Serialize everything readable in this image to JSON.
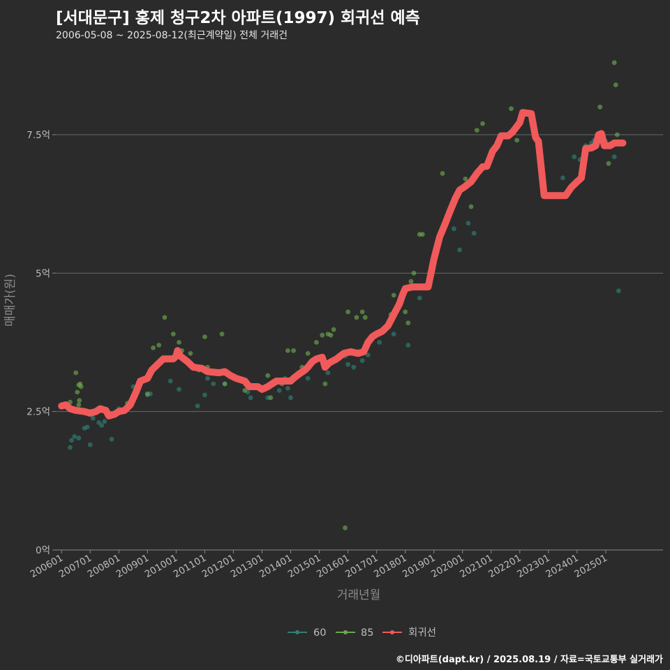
{
  "title": "[서대문구] 홍제 청구2차 아파트(1997) 회귀선 예측",
  "subtitle": "2006-05-08 ~ 2025-08-12(최근계약일) 전체 거래건",
  "caption": "©디아파트(dapt.kr) / 2025.08.19 / 자료=국토교통부 실거래가",
  "colors": {
    "background": "#2b2b2b",
    "s60": "#2e8077",
    "s85": "#6aa84f",
    "regression": "#f05a5a",
    "grid": "#6a6a6a"
  },
  "chart_data": {
    "type": "scatter",
    "title": "[서대문구] 홍제 청구2차 아파트(1997) 회귀선 예측",
    "xlabel": "거래년월",
    "ylabel": "매매가(원)",
    "x_unit": "decimal year",
    "y_unit": "억",
    "xlim": [
      2005.8,
      2027.0
    ],
    "ylim": [
      0,
      9.05
    ],
    "yticks": [
      0,
      2.5,
      5,
      7.5
    ],
    "ytick_labels": [
      "0억",
      "2.5억",
      "5억",
      "7.5억"
    ],
    "xticks": [
      2006,
      2007,
      2008,
      2009,
      2010,
      2011,
      2012,
      2013,
      2014,
      2015,
      2016,
      2017,
      2018,
      2019,
      2020,
      2021,
      2022,
      2023,
      2024,
      2025
    ],
    "xtick_labels": [
      "200601",
      "200701",
      "200801",
      "200901",
      "201001",
      "201101",
      "201201",
      "201301",
      "201401",
      "201501",
      "201601",
      "201701",
      "201801",
      "201901",
      "202001",
      "202101",
      "202201",
      "202301",
      "202401",
      "202501"
    ],
    "legend": {
      "position": "bottom",
      "entries": [
        "60",
        "85",
        "회귀선"
      ]
    },
    "series": [
      {
        "name": "60",
        "type": "scatter",
        "points": [
          [
            2006.3,
            1.85
          ],
          [
            2006.35,
            1.98
          ],
          [
            2006.45,
            2.05
          ],
          [
            2006.6,
            2.02
          ],
          [
            2006.8,
            2.2
          ],
          [
            2006.9,
            2.22
          ],
          [
            2007.0,
            1.9
          ],
          [
            2007.1,
            2.38
          ],
          [
            2007.3,
            2.3
          ],
          [
            2007.4,
            2.25
          ],
          [
            2007.5,
            2.32
          ],
          [
            2007.75,
            2.0
          ],
          [
            2008.0,
            2.55
          ],
          [
            2008.5,
            2.95
          ],
          [
            2009.0,
            2.8
          ],
          [
            2009.1,
            2.82
          ],
          [
            2009.8,
            3.05
          ],
          [
            2010.1,
            2.9
          ],
          [
            2010.75,
            2.6
          ],
          [
            2011.0,
            2.8
          ],
          [
            2011.1,
            3.1
          ],
          [
            2011.3,
            3.0
          ],
          [
            2011.7,
            3.0
          ],
          [
            2012.2,
            3.1
          ],
          [
            2012.5,
            2.85
          ],
          [
            2012.6,
            2.75
          ],
          [
            2013.2,
            2.75
          ],
          [
            2013.5,
            3.05
          ],
          [
            2013.6,
            2.88
          ],
          [
            2013.8,
            3.1
          ],
          [
            2013.9,
            2.92
          ],
          [
            2014.0,
            2.75
          ],
          [
            2014.3,
            3.15
          ],
          [
            2014.6,
            3.1
          ],
          [
            2015.3,
            3.2
          ],
          [
            2015.9,
            3.5
          ],
          [
            2016.0,
            3.35
          ],
          [
            2016.2,
            3.3
          ],
          [
            2016.5,
            3.42
          ],
          [
            2016.7,
            3.52
          ],
          [
            2017.1,
            3.75
          ],
          [
            2017.6,
            3.9
          ],
          [
            2018.1,
            3.7
          ],
          [
            2018.5,
            4.55
          ],
          [
            2019.7,
            5.8
          ],
          [
            2019.9,
            5.42
          ],
          [
            2020.2,
            5.9
          ],
          [
            2020.4,
            5.72
          ],
          [
            2023.5,
            6.72
          ],
          [
            2023.9,
            7.1
          ],
          [
            2024.1,
            7.05
          ],
          [
            2024.3,
            7.3
          ],
          [
            2024.5,
            7.35
          ],
          [
            2024.6,
            7.4
          ],
          [
            2024.8,
            7.5
          ],
          [
            2025.0,
            7.38
          ],
          [
            2025.3,
            7.1
          ],
          [
            2025.45,
            4.68
          ]
        ]
      },
      {
        "name": "85",
        "type": "scatter",
        "points": [
          [
            2006.3,
            2.67
          ],
          [
            2006.5,
            3.2
          ],
          [
            2006.55,
            2.85
          ],
          [
            2006.6,
            2.98
          ],
          [
            2006.62,
            2.7
          ],
          [
            2006.65,
            3.0
          ],
          [
            2006.6,
            2.62
          ],
          [
            2006.68,
            2.95
          ],
          [
            2008.3,
            2.65
          ],
          [
            2009.0,
            2.82
          ],
          [
            2009.2,
            3.65
          ],
          [
            2009.4,
            3.7
          ],
          [
            2009.6,
            4.2
          ],
          [
            2009.9,
            3.9
          ],
          [
            2010.1,
            3.75
          ],
          [
            2010.2,
            3.6
          ],
          [
            2010.5,
            3.55
          ],
          [
            2010.8,
            3.25
          ],
          [
            2011.0,
            3.85
          ],
          [
            2011.1,
            3.3
          ],
          [
            2011.6,
            3.9
          ],
          [
            2011.7,
            3.0
          ],
          [
            2012.4,
            2.88
          ],
          [
            2013.2,
            3.15
          ],
          [
            2013.3,
            2.75
          ],
          [
            2013.7,
            3.0
          ],
          [
            2013.9,
            3.6
          ],
          [
            2014.1,
            3.6
          ],
          [
            2014.4,
            3.3
          ],
          [
            2014.6,
            3.55
          ],
          [
            2014.9,
            3.75
          ],
          [
            2015.1,
            3.88
          ],
          [
            2015.2,
            3.0
          ],
          [
            2015.3,
            3.9
          ],
          [
            2015.4,
            3.88
          ],
          [
            2015.5,
            3.98
          ],
          [
            2015.9,
            0.4
          ],
          [
            2016.0,
            4.3
          ],
          [
            2016.3,
            4.2
          ],
          [
            2016.5,
            4.3
          ],
          [
            2016.6,
            4.2
          ],
          [
            2017.1,
            3.9
          ],
          [
            2017.3,
            4.0
          ],
          [
            2017.5,
            4.25
          ],
          [
            2017.6,
            4.6
          ],
          [
            2018.0,
            4.3
          ],
          [
            2018.1,
            4.1
          ],
          [
            2018.2,
            4.85
          ],
          [
            2018.3,
            5.0
          ],
          [
            2018.5,
            5.7
          ],
          [
            2018.6,
            5.7
          ],
          [
            2019.3,
            6.8
          ],
          [
            2019.5,
            5.99
          ],
          [
            2020.1,
            6.7
          ],
          [
            2020.3,
            6.2
          ],
          [
            2020.5,
            7.58
          ],
          [
            2020.7,
            7.7
          ],
          [
            2021.7,
            7.97
          ],
          [
            2021.9,
            7.4
          ],
          [
            2024.8,
            8.0
          ],
          [
            2025.1,
            6.98
          ],
          [
            2025.3,
            8.8
          ],
          [
            2025.35,
            8.4
          ],
          [
            2025.4,
            7.5
          ]
        ]
      },
      {
        "name": "회귀선",
        "type": "line",
        "points": [
          [
            2006.0,
            2.6
          ],
          [
            2006.15,
            2.62
          ],
          [
            2006.3,
            2.55
          ],
          [
            2006.5,
            2.52
          ],
          [
            2006.8,
            2.5
          ],
          [
            2007.0,
            2.47
          ],
          [
            2007.2,
            2.5
          ],
          [
            2007.35,
            2.55
          ],
          [
            2007.55,
            2.52
          ],
          [
            2007.65,
            2.42
          ],
          [
            2007.85,
            2.45
          ],
          [
            2008.0,
            2.5
          ],
          [
            2008.2,
            2.52
          ],
          [
            2008.4,
            2.62
          ],
          [
            2008.6,
            2.85
          ],
          [
            2008.75,
            3.05
          ],
          [
            2009.0,
            3.1
          ],
          [
            2009.15,
            3.25
          ],
          [
            2009.35,
            3.35
          ],
          [
            2009.55,
            3.45
          ],
          [
            2009.9,
            3.45
          ],
          [
            2010.0,
            3.5
          ],
          [
            2010.05,
            3.6
          ],
          [
            2010.15,
            3.5
          ],
          [
            2010.4,
            3.4
          ],
          [
            2010.6,
            3.3
          ],
          [
            2010.9,
            3.28
          ],
          [
            2011.1,
            3.22
          ],
          [
            2011.5,
            3.2
          ],
          [
            2011.7,
            3.22
          ],
          [
            2011.9,
            3.15
          ],
          [
            2012.1,
            3.1
          ],
          [
            2012.4,
            3.05
          ],
          [
            2012.55,
            2.95
          ],
          [
            2012.85,
            2.95
          ],
          [
            2013.0,
            2.9
          ],
          [
            2013.2,
            2.95
          ],
          [
            2013.5,
            3.05
          ],
          [
            2013.8,
            3.05
          ],
          [
            2014.0,
            3.05
          ],
          [
            2014.1,
            3.1
          ],
          [
            2014.3,
            3.18
          ],
          [
            2014.5,
            3.25
          ],
          [
            2014.6,
            3.3
          ],
          [
            2014.75,
            3.4
          ],
          [
            2014.9,
            3.45
          ],
          [
            2015.1,
            3.48
          ],
          [
            2015.2,
            3.3
          ],
          [
            2015.35,
            3.38
          ],
          [
            2015.6,
            3.45
          ],
          [
            2015.85,
            3.55
          ],
          [
            2016.1,
            3.58
          ],
          [
            2016.35,
            3.55
          ],
          [
            2016.55,
            3.58
          ],
          [
            2016.7,
            3.75
          ],
          [
            2016.85,
            3.85
          ],
          [
            2017.0,
            3.9
          ],
          [
            2017.2,
            3.95
          ],
          [
            2017.4,
            4.05
          ],
          [
            2017.6,
            4.25
          ],
          [
            2017.8,
            4.45
          ],
          [
            2017.9,
            4.6
          ],
          [
            2018.0,
            4.72
          ],
          [
            2018.25,
            4.75
          ],
          [
            2018.8,
            4.75
          ],
          [
            2019.0,
            5.25
          ],
          [
            2019.2,
            5.65
          ],
          [
            2019.4,
            5.9
          ],
          [
            2019.55,
            6.1
          ],
          [
            2019.75,
            6.35
          ],
          [
            2019.9,
            6.5
          ],
          [
            2020.05,
            6.55
          ],
          [
            2020.3,
            6.65
          ],
          [
            2020.5,
            6.8
          ],
          [
            2020.7,
            6.92
          ],
          [
            2020.85,
            6.93
          ],
          [
            2021.05,
            7.2
          ],
          [
            2021.2,
            7.3
          ],
          [
            2021.35,
            7.48
          ],
          [
            2021.6,
            7.48
          ],
          [
            2021.75,
            7.55
          ],
          [
            2021.9,
            7.65
          ],
          [
            2022.0,
            7.72
          ],
          [
            2022.1,
            7.9
          ],
          [
            2022.4,
            7.88
          ],
          [
            2022.55,
            7.45
          ],
          [
            2022.65,
            7.38
          ],
          [
            2022.85,
            6.4
          ],
          [
            2023.6,
            6.4
          ],
          [
            2023.8,
            6.55
          ],
          [
            2024.0,
            6.65
          ],
          [
            2024.15,
            6.72
          ],
          [
            2024.3,
            7.25
          ],
          [
            2024.5,
            7.26
          ],
          [
            2024.65,
            7.3
          ],
          [
            2024.75,
            7.5
          ],
          [
            2024.85,
            7.52
          ],
          [
            2024.95,
            7.3
          ],
          [
            2025.15,
            7.3
          ],
          [
            2025.3,
            7.35
          ],
          [
            2025.5,
            7.35
          ],
          [
            2025.6,
            7.35
          ]
        ]
      }
    ]
  }
}
